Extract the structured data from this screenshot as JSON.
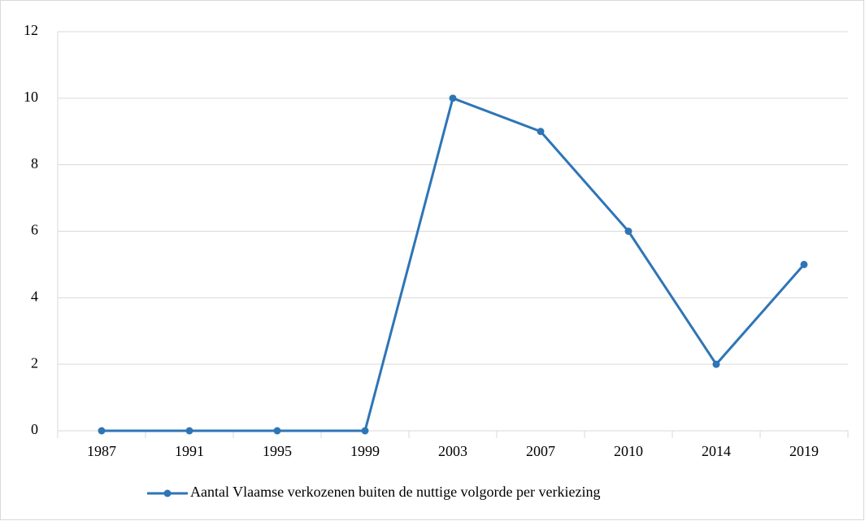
{
  "chart_data": {
    "type": "line",
    "categories": [
      "1987",
      "1991",
      "1995",
      "1999",
      "2003",
      "2007",
      "2010",
      "2014",
      "2019"
    ],
    "series": [
      {
        "name": "Aantal Vlaamse verkozenen buiten de nuttige volgorde per verkiezing",
        "color": "#2e75b6",
        "values": [
          0,
          0,
          0,
          0,
          10,
          9,
          6,
          2,
          5
        ]
      }
    ],
    "ylim": [
      0,
      12
    ],
    "yticks": [
      0,
      2,
      4,
      6,
      8,
      10,
      12
    ],
    "grid": true,
    "legend": "bottom"
  }
}
